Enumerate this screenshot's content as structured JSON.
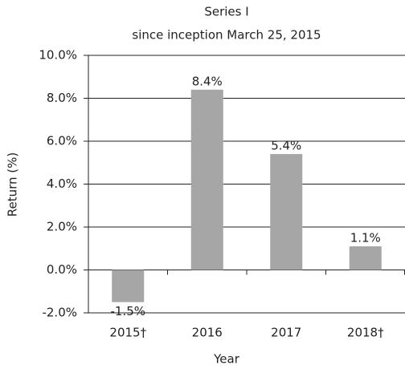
{
  "chart_data": {
    "type": "bar",
    "title": "Series I",
    "subtitle": "since inception March 25, 2015",
    "x_label": "Year",
    "y_label": "Return (%)",
    "categories": [
      "2015†",
      "2016",
      "2017",
      "2018†"
    ],
    "values": [
      -1.5,
      8.4,
      5.4,
      1.1
    ],
    "value_labels": [
      "-1.5%",
      "8.4%",
      "5.4%",
      "1.1%"
    ],
    "color": "#a6a6a6",
    "ylim": [
      -2,
      10
    ],
    "yticks": [
      {
        "value": -2,
        "label": "-2.0%"
      },
      {
        "value": 0,
        "label": "0.0%"
      },
      {
        "value": 2,
        "label": "2.0%"
      },
      {
        "value": 4,
        "label": "4.0%"
      },
      {
        "value": 6,
        "label": "6.0%"
      },
      {
        "value": 8,
        "label": "8.0%"
      },
      {
        "value": 10,
        "label": "10.0%"
      }
    ],
    "grid": true
  }
}
